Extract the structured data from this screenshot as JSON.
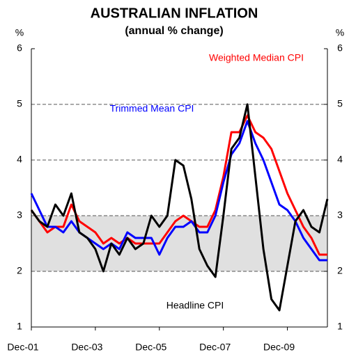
{
  "chart_data": {
    "type": "line",
    "title": "AUSTRALIAN INFLATION",
    "subtitle": "(annual % change)",
    "y_label": "%",
    "y2_label": "%",
    "categories": [
      "Dec-01",
      null,
      null,
      null,
      null,
      null,
      null,
      null,
      "Dec-03",
      null,
      null,
      null,
      null,
      null,
      null,
      null,
      "Dec-05",
      null,
      null,
      null,
      null,
      null,
      null,
      null,
      "Dec-07",
      null,
      null,
      null,
      null,
      null,
      null,
      null,
      "Dec-09",
      null,
      null,
      null,
      null,
      null
    ],
    "ylim": [
      1,
      6
    ],
    "yticks": [
      1,
      2,
      3,
      4,
      5,
      6
    ],
    "y2lim": [
      1,
      6
    ],
    "y2ticks": [
      1,
      2,
      3,
      4,
      5,
      6
    ],
    "grid": true,
    "target_band": [
      2,
      3
    ],
    "series": [
      {
        "name": "Weighted Median CPI",
        "color": "#ff0000",
        "values": [
          3.1,
          2.9,
          2.7,
          2.8,
          2.8,
          3.2,
          2.9,
          2.8,
          2.7,
          2.5,
          2.6,
          2.5,
          2.6,
          2.5,
          2.5,
          2.5,
          2.5,
          2.7,
          2.9,
          3.0,
          2.9,
          2.8,
          2.8,
          3.1,
          3.7,
          4.5,
          4.5,
          4.8,
          4.5,
          4.4,
          4.2,
          3.8,
          3.4,
          3.1,
          2.8,
          2.6,
          2.3,
          2.3
        ]
      },
      {
        "name": "Trimmed Mean CPI",
        "color": "#0000ff",
        "values": [
          3.4,
          3.1,
          2.8,
          2.8,
          2.7,
          2.9,
          2.7,
          2.6,
          2.5,
          2.4,
          2.5,
          2.4,
          2.7,
          2.6,
          2.6,
          2.6,
          2.3,
          2.6,
          2.8,
          2.8,
          2.9,
          2.7,
          2.7,
          3.0,
          3.6,
          4.1,
          4.3,
          4.7,
          4.3,
          4.0,
          3.6,
          3.2,
          3.1,
          2.9,
          2.6,
          2.4,
          2.2,
          2.2
        ]
      },
      {
        "name": "Headline CPI",
        "color": "#000000",
        "values": [
          3.1,
          2.9,
          2.8,
          3.2,
          3.0,
          3.4,
          2.7,
          2.6,
          2.4,
          2.0,
          2.5,
          2.3,
          2.6,
          2.4,
          2.5,
          3.0,
          2.8,
          3.0,
          4.0,
          3.9,
          3.3,
          2.4,
          2.1,
          1.9,
          3.0,
          4.2,
          4.4,
          5.0,
          3.7,
          2.4,
          1.5,
          1.3,
          2.1,
          2.9,
          3.1,
          2.8,
          2.7,
          3.3
        ]
      }
    ]
  }
}
